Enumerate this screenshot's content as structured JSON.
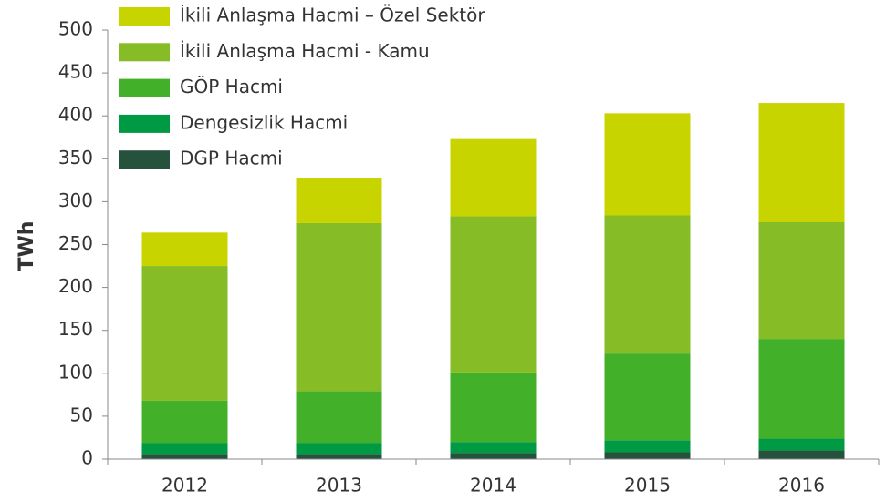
{
  "chart_data": {
    "type": "stacked_bar",
    "y_axis_label": "TWh",
    "categories": [
      "2012",
      "2013",
      "2014",
      "2015",
      "2016"
    ],
    "series": [
      {
        "name": "DGP Hacmi",
        "color": "#26513c",
        "values": [
          6,
          6,
          7,
          8,
          10
        ]
      },
      {
        "name": "Dengesizlik Hacmi",
        "color": "#009a44",
        "values": [
          13,
          13,
          13,
          14,
          14
        ]
      },
      {
        "name": "GÖP Hacmi",
        "color": "#43b02a",
        "values": [
          49,
          60,
          81,
          101,
          116
        ]
      },
      {
        "name": "İkili Anlaşma Hacmi - Kamu",
        "color": "#86bc25",
        "values": [
          157,
          196,
          182,
          161,
          136
        ]
      },
      {
        "name": "İkili Anlaşma Hacmi – Özel Sektör",
        "color": "#c8d400",
        "values": [
          39,
          53,
          90,
          119,
          139
        ]
      }
    ],
    "ylim": [
      0,
      500
    ],
    "yticks": [
      0,
      50,
      100,
      150,
      200,
      250,
      300,
      350,
      400,
      450,
      500
    ],
    "legend": "top-left"
  }
}
